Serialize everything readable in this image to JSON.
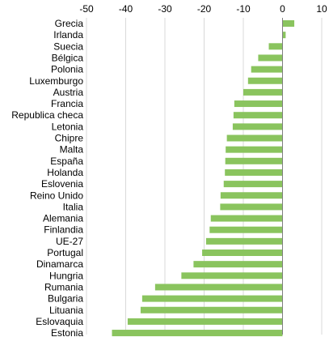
{
  "chart_data": {
    "type": "bar",
    "orientation": "horizontal",
    "title": "",
    "xlabel": "",
    "ylabel": "",
    "xlim": [
      -50,
      10
    ],
    "xticks": [
      -50,
      -40,
      -30,
      -20,
      -10,
      0,
      10
    ],
    "tick_labels": [
      "-50",
      "-40",
      "-30",
      "-20",
      "-10",
      "0",
      "10"
    ],
    "grid": "vertical",
    "legend": "none",
    "bar_color": "#8ac45e",
    "categories": [
      "Grecia",
      "Irlanda",
      "Suecia",
      "Bélgica",
      "Polonia",
      "Luxemburgo",
      "Austria",
      "Francia",
      "Republica checa",
      "Letonia",
      "Chipre",
      "Malta",
      "España",
      "Holanda",
      "Eslovenia",
      "Reino Unido",
      "Italia",
      "Alemania",
      "Finlandia",
      "UE-27",
      "Portugal",
      "Dinamarca",
      "Hungria",
      "Rumania",
      "Bulgaria",
      "Lituania",
      "Eslovaquia",
      "Estonia"
    ],
    "values": [
      3.0,
      0.8,
      -3.5,
      -6.2,
      -8.0,
      -8.8,
      -10.0,
      -12.3,
      -12.5,
      -12.7,
      -14.2,
      -14.5,
      -14.6,
      -14.7,
      -15.0,
      -15.8,
      -15.9,
      -18.3,
      -18.6,
      -19.5,
      -20.5,
      -22.7,
      -25.8,
      -32.5,
      -35.8,
      -36.2,
      -39.5,
      -43.5
    ]
  }
}
